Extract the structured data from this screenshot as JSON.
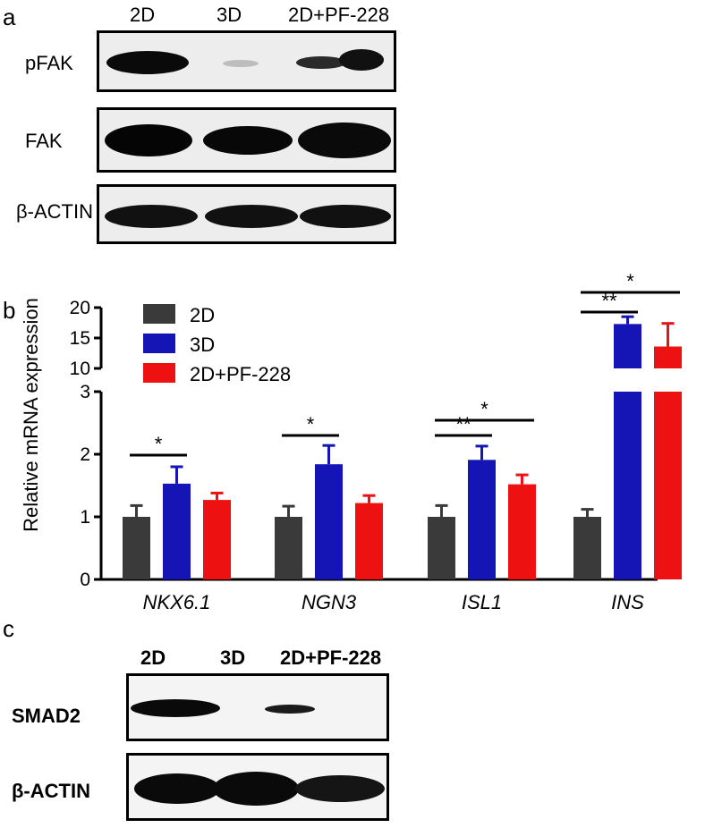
{
  "panel_a": {
    "letter": "a",
    "lanes": [
      "2D",
      "3D",
      "2D+PF-228"
    ],
    "rows": [
      "pFAK",
      "FAK",
      "β-ACTIN"
    ]
  },
  "panel_b": {
    "letter": "b"
  },
  "panel_c": {
    "letter": "c",
    "lanes": [
      "2D",
      "3D",
      "2D+PF-228"
    ],
    "rows": [
      "SMAD2",
      "β-ACTIN"
    ]
  },
  "chart_data": {
    "type": "bar",
    "ylabel": "Relative mRNA expression",
    "categories": [
      "NKX6.1",
      "NGN3",
      "ISL1",
      "INS"
    ],
    "series": [
      {
        "name": "2D",
        "color": "#3a3a3a",
        "values": [
          1.0,
          1.0,
          1.0,
          1.0
        ],
        "errors": [
          0.18,
          0.17,
          0.18,
          0.12
        ]
      },
      {
        "name": "3D",
        "color": "#1515b5",
        "values": [
          1.53,
          1.84,
          1.91,
          17.3
        ],
        "errors": [
          0.27,
          0.3,
          0.22,
          1.2
        ]
      },
      {
        "name": "2D+PF-228",
        "color": "#ee1111",
        "values": [
          1.27,
          1.22,
          1.52,
          13.6
        ],
        "errors": [
          0.11,
          0.12,
          0.15,
          3.8
        ]
      }
    ],
    "axis_break": {
      "lower_range": [
        0,
        3
      ],
      "upper_range": [
        10,
        20
      ]
    },
    "yticks_lower": [
      "0",
      "1",
      "2",
      "3"
    ],
    "yticks_upper": [
      "10",
      "15",
      "20"
    ],
    "legend_position": "top-left",
    "significance": [
      {
        "category": "NKX6.1",
        "compare": "2D vs 3D",
        "label": "*"
      },
      {
        "category": "NGN3",
        "compare": "2D vs 3D",
        "label": "*"
      },
      {
        "category": "ISL1",
        "compare": "2D vs 3D",
        "label": "**"
      },
      {
        "category": "ISL1",
        "compare": "2D vs 2D+PF-228",
        "label": "*"
      },
      {
        "category": "INS",
        "compare": "2D vs 3D",
        "label": "**"
      },
      {
        "category": "INS",
        "compare": "2D vs 2D+PF-228",
        "label": "*"
      }
    ]
  }
}
